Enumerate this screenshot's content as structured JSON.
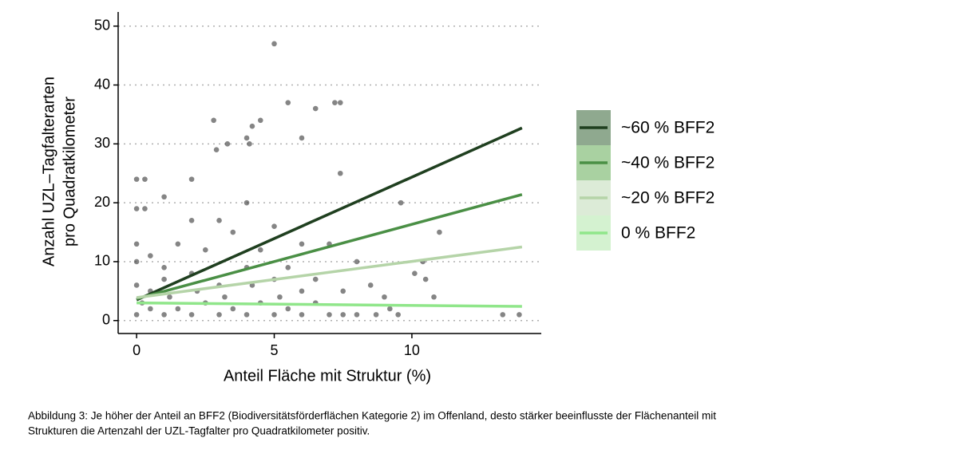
{
  "chart_data": {
    "type": "scatter",
    "xlabel": "Anteil Fläche mit Struktur (%)",
    "ylabel": [
      "Anzahl UZL–Tagfalterarten",
      "pro Quadratkilometer"
    ],
    "xlim": [
      -0.67,
      14.7
    ],
    "ylim": [
      -2.2,
      52.4
    ],
    "xticks": [
      0,
      5,
      10
    ],
    "yticks": [
      0,
      10,
      20,
      30,
      40,
      50
    ],
    "grid": true,
    "legend": "right",
    "points": {
      "color": "#333333",
      "x": [
        5,
        5.5,
        6.5,
        7.2,
        7.4,
        2.8,
        4.5,
        4.2,
        4,
        6,
        2.9,
        4.1,
        3.3,
        0,
        0.3,
        2,
        7.4,
        9.6,
        11,
        10.4,
        10.1,
        10.5,
        10.8,
        13.3,
        13.9,
        0,
        0.3,
        1,
        2,
        3,
        4,
        5,
        6,
        7,
        8,
        8.5,
        9,
        9.5,
        8,
        0,
        0,
        0.5,
        1,
        1.5,
        2.5,
        3.5,
        4.5,
        5.5,
        6.5,
        7.5,
        0,
        0.5,
        1,
        1.5,
        2,
        2.5,
        3,
        3.5,
        4,
        4.5,
        5,
        5.5,
        6,
        6.5,
        7,
        0,
        0.5,
        1,
        2,
        3,
        4,
        5,
        6,
        0.2,
        1.2,
        2.2,
        3.2,
        4.2,
        5.2,
        7.5,
        8.7,
        9.2
      ],
      "y": [
        47,
        37,
        36,
        37,
        37,
        34,
        34,
        33,
        31,
        31,
        29,
        30,
        30,
        24,
        24,
        24,
        25,
        20,
        15,
        10,
        8,
        7,
        4,
        1,
        1,
        19,
        19,
        21,
        17,
        17,
        20,
        16,
        13,
        13,
        10,
        6,
        4,
        1,
        1,
        13,
        10,
        11,
        9,
        13,
        12,
        15,
        12,
        9,
        7,
        5,
        1,
        2,
        1,
        2,
        1,
        3,
        1,
        2,
        1,
        3,
        1,
        2,
        1,
        3,
        1,
        6,
        5,
        7,
        8,
        6,
        9,
        7,
        5,
        3,
        4,
        5,
        4,
        6,
        4,
        1,
        1,
        2
      ]
    },
    "series": [
      {
        "name": "~60 % BFF2",
        "color": "#1f3f1f",
        "fill": "#8fa98f",
        "x": [
          0,
          14
        ],
        "values": [
          3.5,
          32.7
        ]
      },
      {
        "name": "~40 % BFF2",
        "color": "#4a8f45",
        "fill": "#a9d1a1",
        "x": [
          0,
          14
        ],
        "values": [
          3.7,
          21.4
        ]
      },
      {
        "name": "~20 % BFF2",
        "color": "#b5d4a8",
        "fill": "#dcebd7",
        "x": [
          0,
          14
        ],
        "values": [
          3.9,
          12.5
        ]
      },
      {
        "name": "0 % BFF2",
        "color": "#90e68a",
        "fill": "#d4f2d0",
        "x": [
          0,
          14
        ],
        "values": [
          3,
          2.4
        ]
      }
    ],
    "caption": [
      "Abbildung 3: Je höher der Anteil an BFF2 (Biodiversitätsförderflächen Kategorie 2) im Offenland, desto stärker beeinflusste der Flächenanteil mit",
      "Strukturen die Artenzahl der UZL-Tagfalter pro Quadratkilometer positiv."
    ]
  }
}
